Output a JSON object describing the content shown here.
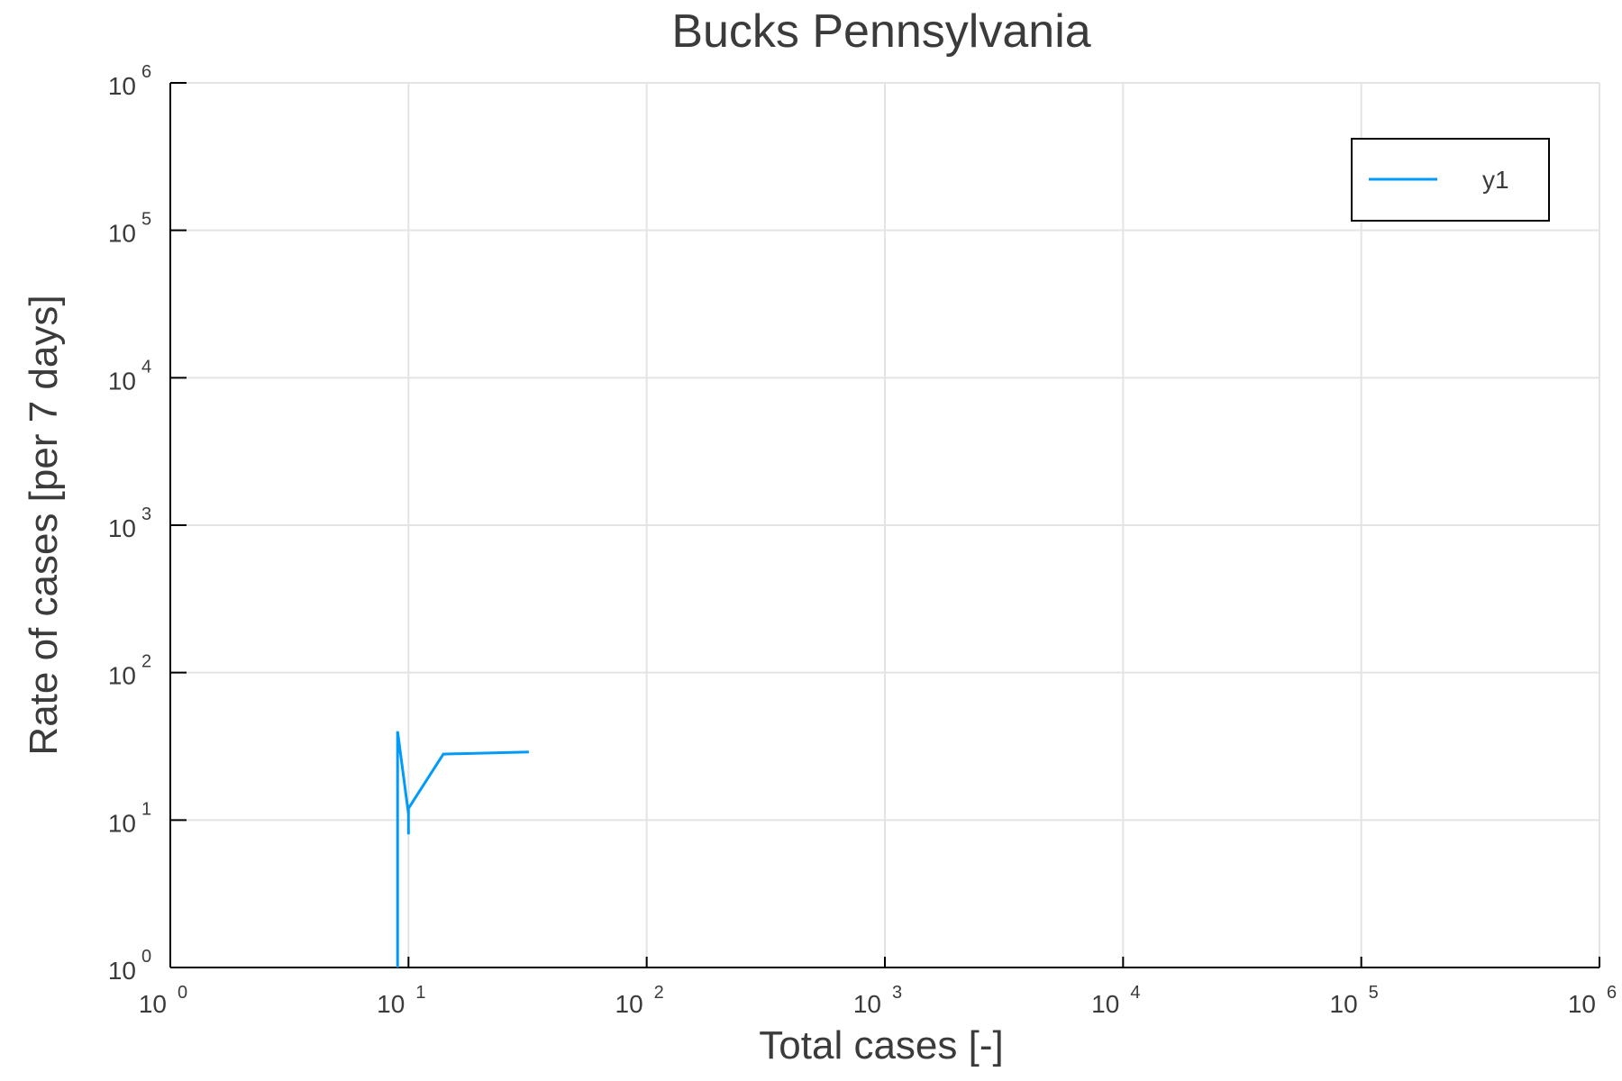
{
  "chart_data": {
    "type": "line",
    "title": "Bucks Pennsylvania",
    "xlabel": "Total cases [-]",
    "ylabel": "Rate of cases [per 7 days]",
    "xscale": "log",
    "yscale": "log",
    "xlim": [
      1,
      1000000
    ],
    "ylim": [
      1,
      1000000
    ],
    "grid": true,
    "legend_position": "top-right",
    "x_ticks": [
      {
        "base": "10",
        "exp": "0",
        "value": 1
      },
      {
        "base": "10",
        "exp": "1",
        "value": 10
      },
      {
        "base": "10",
        "exp": "2",
        "value": 100
      },
      {
        "base": "10",
        "exp": "3",
        "value": 1000
      },
      {
        "base": "10",
        "exp": "4",
        "value": 10000
      },
      {
        "base": "10",
        "exp": "5",
        "value": 100000
      },
      {
        "base": "10",
        "exp": "6",
        "value": 1000000
      }
    ],
    "y_ticks": [
      {
        "base": "10",
        "exp": "0",
        "value": 1
      },
      {
        "base": "10",
        "exp": "1",
        "value": 10
      },
      {
        "base": "10",
        "exp": "2",
        "value": 100
      },
      {
        "base": "10",
        "exp": "3",
        "value": 1000
      },
      {
        "base": "10",
        "exp": "4",
        "value": 10000
      },
      {
        "base": "10",
        "exp": "5",
        "value": 100000
      },
      {
        "base": "10",
        "exp": "6",
        "value": 1000000
      }
    ],
    "series": [
      {
        "name": "y1",
        "color": "#009af9",
        "points": [
          {
            "x": 9,
            "y": 1
          },
          {
            "x": 9,
            "y": 40
          },
          {
            "x": 10,
            "y": 11
          },
          {
            "x": 10,
            "y": 8
          },
          {
            "x": 10,
            "y": 12
          },
          {
            "x": 14,
            "y": 28
          },
          {
            "x": 32,
            "y": 29
          }
        ]
      }
    ]
  }
}
